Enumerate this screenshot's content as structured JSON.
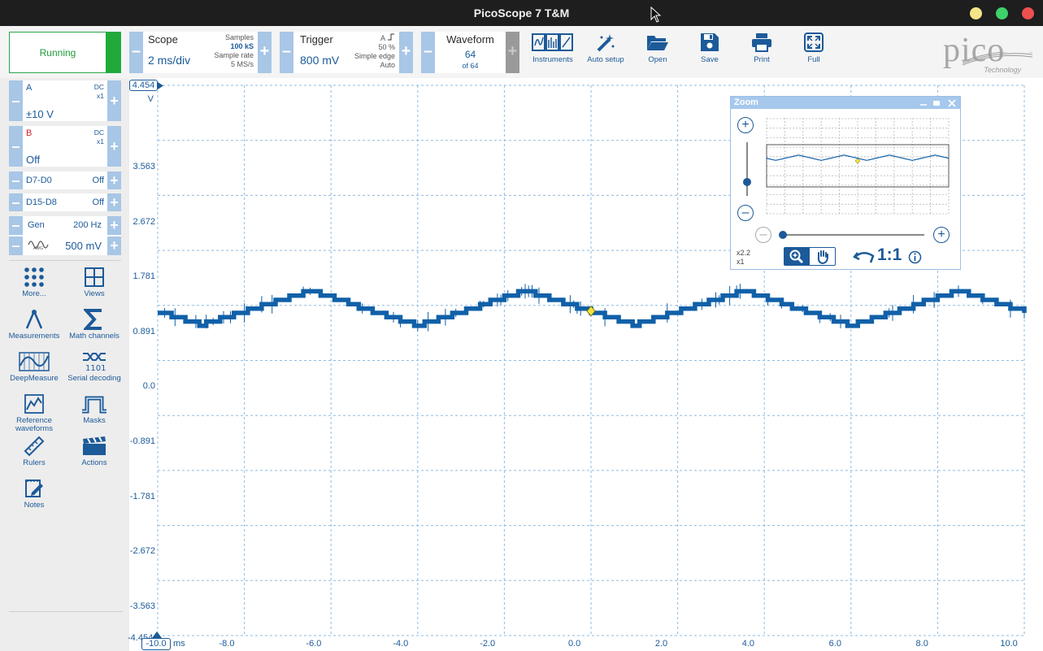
{
  "window": {
    "title": "PicoScope 7 T&M"
  },
  "colors": {
    "accent": "#1c5a99",
    "trace": "#1060a8",
    "running": "#1faa3a",
    "grid": "#8dbbe0"
  },
  "toolbar": {
    "run_status": "Running",
    "scope": {
      "title": "Scope",
      "value": "2 ms/div",
      "samples_label": "Samples",
      "samples_value": "100 kS",
      "rate_label": "Sample rate",
      "rate_value": "5 MS/s"
    },
    "trigger": {
      "title": "Trigger",
      "value": "800 mV",
      "channel": "A",
      "position": "50 %",
      "type": "Simple edge",
      "mode": "Auto"
    },
    "waveform": {
      "title": "Waveform",
      "current": "64",
      "total": "of 64"
    },
    "buttons": [
      {
        "label": "Instruments",
        "icon": "instruments-icon"
      },
      {
        "label": "Auto setup",
        "icon": "auto-setup-icon"
      },
      {
        "label": "Open",
        "icon": "folder-open-icon"
      },
      {
        "label": "Save",
        "icon": "save-icon"
      },
      {
        "label": "Print",
        "icon": "print-icon"
      },
      {
        "label": "Full",
        "icon": "fullscreen-icon"
      }
    ],
    "logo": {
      "word": "pico",
      "sub": "Technology"
    }
  },
  "channels": {
    "a": {
      "name": "A",
      "coupling": "DC",
      "probe": "x1",
      "range": "±10 V"
    },
    "b": {
      "name": "B",
      "coupling": "DC",
      "probe": "x1",
      "range": "Off"
    },
    "d7_d0": {
      "name": "D7-D0",
      "state": "Off"
    },
    "d15_d8": {
      "name": "D15-D8",
      "state": "Off"
    },
    "gen": {
      "name": "Gen",
      "frequency": "200 Hz",
      "amplitude": "500 mV"
    }
  },
  "sidebar_tools": [
    {
      "label": "More...",
      "icon": "more-icon"
    },
    {
      "label": "Views",
      "icon": "views-icon"
    },
    {
      "label": "Measurements",
      "icon": "measurements-icon"
    },
    {
      "label": "Math channels",
      "icon": "sigma-icon"
    },
    {
      "label": "DeepMeasure",
      "icon": "deepmeasure-icon"
    },
    {
      "label": "Serial decoding",
      "icon": "serial-decoding-icon"
    },
    {
      "label": "Reference waveforms",
      "icon": "reference-waveforms-icon"
    },
    {
      "label": "Masks",
      "icon": "masks-icon"
    },
    {
      "label": "Rulers",
      "icon": "ruler-icon"
    },
    {
      "label": "Actions",
      "icon": "actions-icon"
    },
    {
      "label": "Notes",
      "icon": "notes-icon"
    }
  ],
  "plot": {
    "y_unit": "V",
    "y_top_marker": "4.454",
    "y_ticks": [
      "3.563",
      "2.672",
      "1.781",
      "0.891",
      "0.0",
      "-0.891",
      "-1.781",
      "-2.672",
      "-3.563"
    ],
    "y_bottom": "-4.454",
    "x_start_marker": "-10.0",
    "x_unit": "ms",
    "x_ticks": [
      "-8.0",
      "-6.0",
      "-4.0",
      "-2.0",
      "0.0",
      "2.0",
      "4.0",
      "6.0",
      "8.0",
      "10.0"
    ]
  },
  "chart_data": {
    "type": "line",
    "xlim": [
      -10.0,
      10.0
    ],
    "ylim": [
      -4.454,
      4.454
    ],
    "x_unit": "ms",
    "y_unit": "V",
    "series": [
      {
        "frequency_hz": 200,
        "mean_v": 0.85,
        "amplitude_v": 0.28
      }
    ],
    "trigger_point": {
      "x": 0.0,
      "y": 0.8
    },
    "grid": true
  },
  "zoom": {
    "title": "Zoom",
    "zoom_x": "x2.2",
    "zoom_y": "x1",
    "reset_label": "1:1"
  }
}
